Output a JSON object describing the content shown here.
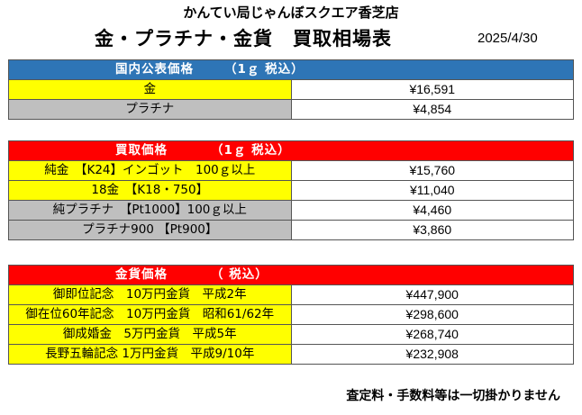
{
  "store_name": "かんてい局じゃんぼスクエア香芝店",
  "title": "金・プラチナ・金貨　買取相場表",
  "date": "2025/4/30",
  "sections": [
    {
      "header": "国内公表価格",
      "header_tag": "（1ｇ 税込）",
      "color": "#2e75b6",
      "rows": [
        {
          "name": "金",
          "price": "¥16,591",
          "bg": "#ffff00"
        },
        {
          "name": "プラチナ",
          "price": "¥4,854",
          "bg": "#bfbfbf"
        }
      ]
    },
    {
      "header": "買取価格",
      "header_tag": "（1ｇ 税込）",
      "color": "#ff0000",
      "rows": [
        {
          "name": "純金　【K24】インゴット　100ｇ以上",
          "price": "¥15,760",
          "bg": "#ffff00"
        },
        {
          "name": "18金　【K18・750】",
          "price": "¥11,040",
          "bg": "#ffff00"
        },
        {
          "name": "純プラチナ　【Pt1000】100ｇ以上",
          "price": "¥4,460",
          "bg": "#bfbfbf"
        },
        {
          "name": "プラチナ900 【Pt900】",
          "price": "¥3,860",
          "bg": "#bfbfbf"
        }
      ]
    },
    {
      "header": "金貨価格",
      "header_tag": "（ 税込）",
      "color": "#ff0000",
      "rows": [
        {
          "name": "御即位記念　10万円金貨　平成2年",
          "price": "¥447,900",
          "bg": "#ffff00"
        },
        {
          "name": "御在位60年記念　10万円金貨　昭和61/62年",
          "price": "¥298,600",
          "bg": "#ffff00"
        },
        {
          "name": "御成婚金　5万円金貨　平成5年",
          "price": "¥268,740",
          "bg": "#ffff00"
        },
        {
          "name": "長野五輪記念 1万円金貨　平成9/10年",
          "price": "¥232,908",
          "bg": "#ffff00"
        }
      ]
    }
  ],
  "footnote": "査定料・手数料等は一切掛かりません"
}
